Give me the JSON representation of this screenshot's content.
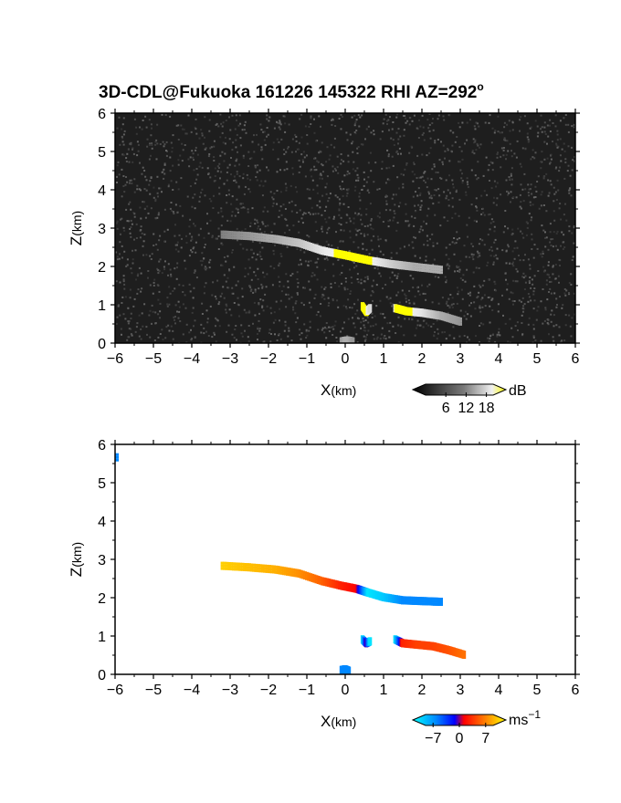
{
  "title_text": "3D-CDL@Fukuoka 161226 145322 RHI AZ=292",
  "title_superscript": "o",
  "chart_data": [
    {
      "type": "heatmap",
      "panel": "intensity",
      "xlabel_main": "X",
      "xlabel_unit": "(km)",
      "ylabel_main": "Z",
      "ylabel_unit": "(km)",
      "xlim": [
        -6,
        6
      ],
      "ylim": [
        0,
        6
      ],
      "xticks": [
        "−6",
        "−5",
        "−4",
        "−3",
        "−2",
        "−1",
        "0",
        "1",
        "2",
        "3",
        "4",
        "5",
        "6"
      ],
      "yticks": [
        "0",
        "1",
        "2",
        "3",
        "4",
        "5",
        "6"
      ],
      "background": "noise",
      "colorbar": {
        "unit": "dB",
        "ticks": [
          "6",
          "12",
          "18"
        ],
        "range": [
          0,
          20
        ]
      },
      "features": [
        {
          "name": "upper-layer",
          "x": [
            -3.2,
            -2.5,
            -1.8,
            -1.2,
            -0.6,
            0.0,
            0.6,
            1.2,
            1.8,
            2.5
          ],
          "z": [
            2.82,
            2.78,
            2.7,
            2.6,
            2.4,
            2.28,
            2.15,
            2.05,
            1.98,
            1.9
          ],
          "db": [
            8,
            10,
            12,
            14,
            17,
            19,
            19,
            15,
            12,
            12
          ]
        },
        {
          "name": "lower-left-cell",
          "x": [
            0.45,
            0.55,
            0.65
          ],
          "z": [
            0.95,
            0.8,
            0.9
          ],
          "db": [
            19,
            19,
            16
          ]
        },
        {
          "name": "lower-right-layer",
          "x": [
            1.3,
            1.6,
            2.0,
            2.5,
            3.0
          ],
          "z": [
            0.9,
            0.82,
            0.78,
            0.7,
            0.55
          ],
          "db": [
            18,
            19,
            17,
            12,
            10
          ]
        },
        {
          "name": "ground-echo",
          "x": [
            -0.1,
            0.0,
            0.1,
            0.2
          ],
          "z": [
            0.03,
            0.05,
            0.05,
            0.03
          ],
          "db": [
            10,
            12,
            12,
            10
          ]
        }
      ]
    },
    {
      "type": "heatmap",
      "panel": "velocity",
      "xlabel_main": "X",
      "xlabel_unit": "(km)",
      "ylabel_main": "Z",
      "ylabel_unit": "(km)",
      "xlim": [
        -6,
        6
      ],
      "ylim": [
        0,
        6
      ],
      "xticks": [
        "−6",
        "−5",
        "−4",
        "−3",
        "−2",
        "−1",
        "0",
        "1",
        "2",
        "3",
        "4",
        "5",
        "6"
      ],
      "yticks": [
        "0",
        "1",
        "2",
        "3",
        "4",
        "5",
        "6"
      ],
      "background": "white",
      "colorbar": {
        "unit": "ms",
        "unit_exp": "−1",
        "ticks": [
          "−7",
          "0",
          "7"
        ],
        "range": [
          -9,
          9
        ]
      },
      "features": [
        {
          "name": "upper-layer",
          "x": [
            -3.2,
            -2.5,
            -1.8,
            -1.2,
            -0.6,
            -0.1,
            0.3,
            0.6,
            1.0,
            1.5,
            2.0,
            2.5
          ],
          "z": [
            2.82,
            2.78,
            2.72,
            2.62,
            2.42,
            2.3,
            2.22,
            2.12,
            2.0,
            1.92,
            1.9,
            1.88
          ],
          "v": [
            7.5,
            7,
            6.5,
            5.5,
            4,
            2,
            1,
            -8,
            -7,
            -4.5,
            -4.5,
            -4.5
          ]
        },
        {
          "name": "lower-left-cell",
          "x": [
            0.45,
            0.55,
            0.65
          ],
          "z": [
            0.9,
            0.8,
            0.85
          ],
          "v": [
            -8,
            0,
            -8
          ]
        },
        {
          "name": "lower-right-layer",
          "x": [
            1.3,
            1.5,
            1.9,
            2.3,
            2.7,
            3.1
          ],
          "z": [
            0.9,
            0.8,
            0.76,
            0.72,
            0.62,
            0.5
          ],
          "v": [
            -8,
            2,
            3,
            3,
            3.5,
            4.5
          ]
        },
        {
          "name": "ground-echo",
          "x": [
            -0.1,
            0.0,
            0.1
          ],
          "z": [
            0.1,
            0.12,
            0.08
          ],
          "v": [
            -4.5,
            -4.5,
            -4.5
          ]
        },
        {
          "name": "corner-point",
          "x": [
            -5.95
          ],
          "z": [
            5.65
          ],
          "v": [
            -4.5
          ]
        }
      ]
    }
  ]
}
